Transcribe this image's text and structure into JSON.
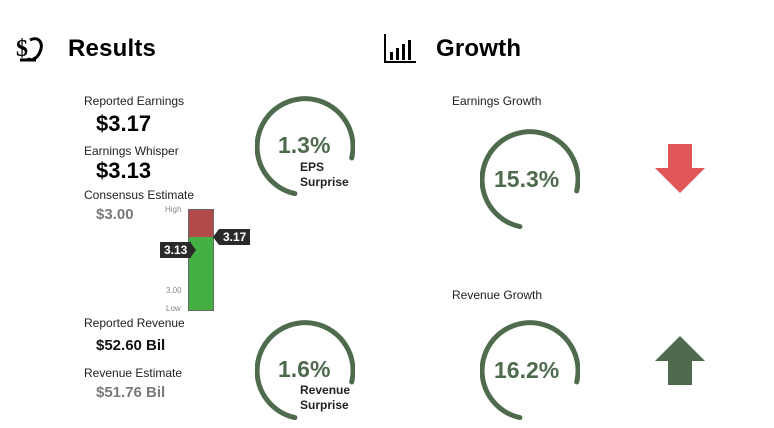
{
  "results": {
    "title": "Results",
    "icon": "money-hand-icon",
    "reported_earnings_label": "Reported Earnings",
    "reported_earnings_value": "$3.17",
    "earnings_whisper_label": "Earnings Whisper",
    "earnings_whisper_value": "$3.13",
    "consensus_label": "Consensus Estimate",
    "consensus_value": "$3.00",
    "eps_surprise_value": "1.3%",
    "eps_surprise_line1": "EPS",
    "eps_surprise_line2": "Surprise",
    "reported_revenue_label": "Reported Revenue",
    "reported_revenue_value": "$52.60 Bil",
    "revenue_estimate_label": "Revenue Estimate",
    "revenue_estimate_value": "$51.76 Bil",
    "revenue_surprise_value": "1.6%",
    "revenue_surprise_line1": "Revenue",
    "revenue_surprise_line2": "Surprise"
  },
  "range_bar": {
    "high_label": "High",
    "low_label": "Low",
    "consensus_tick": "3.00",
    "whisper_tag": "3.13",
    "reported_tag": "3.17",
    "colors": {
      "beat": "#b34a4a",
      "range": "#44b044"
    }
  },
  "growth": {
    "title": "Growth",
    "icon": "bar-chart-icon",
    "earnings_growth_label": "Earnings Growth",
    "earnings_growth_value": "15.3%",
    "earnings_arrow": "arrow-down-icon",
    "revenue_growth_label": "Revenue Growth",
    "revenue_growth_value": "16.2%",
    "revenue_arrow": "arrow-up-icon",
    "colors": {
      "ring": "#4f6b4e",
      "down_arrow": "#e05555",
      "up_arrow": "#4f6b4e"
    }
  }
}
